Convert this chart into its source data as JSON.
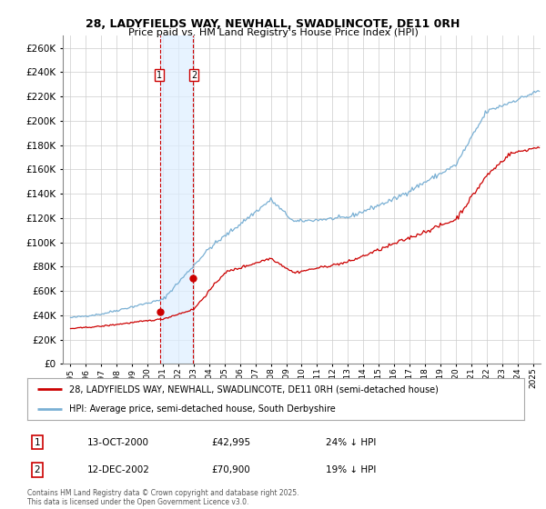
{
  "title_line1": "28, LADYFIELDS WAY, NEWHALL, SWADLINCOTE, DE11 0RH",
  "title_line2": "Price paid vs. HM Land Registry's House Price Index (HPI)",
  "hpi_color": "#7ab0d4",
  "price_color": "#cc0000",
  "marker_color": "#cc0000",
  "background_color": "#ffffff",
  "grid_color": "#cccccc",
  "plot_bg_color": "#ffffff",
  "ylim": [
    0,
    270000
  ],
  "ytick_step": 20000,
  "sale1_date_num": 2000.79,
  "sale1_price": 42995,
  "sale2_date_num": 2002.96,
  "sale2_price": 70900,
  "vline_color": "#cc0000",
  "shade_color": "#ddeeff",
  "legend_label_red": "28, LADYFIELDS WAY, NEWHALL, SWADLINCOTE, DE11 0RH (semi-detached house)",
  "legend_label_blue": "HPI: Average price, semi-detached house, South Derbyshire",
  "table_row1": [
    "1",
    "13-OCT-2000",
    "£42,995",
    "24% ↓ HPI"
  ],
  "table_row2": [
    "2",
    "12-DEC-2002",
    "£70,900",
    "19% ↓ HPI"
  ],
  "footnote": "Contains HM Land Registry data © Crown copyright and database right 2025.\nThis data is licensed under the Open Government Licence v3.0.",
  "xmin": 1994.5,
  "xmax": 2025.5
}
